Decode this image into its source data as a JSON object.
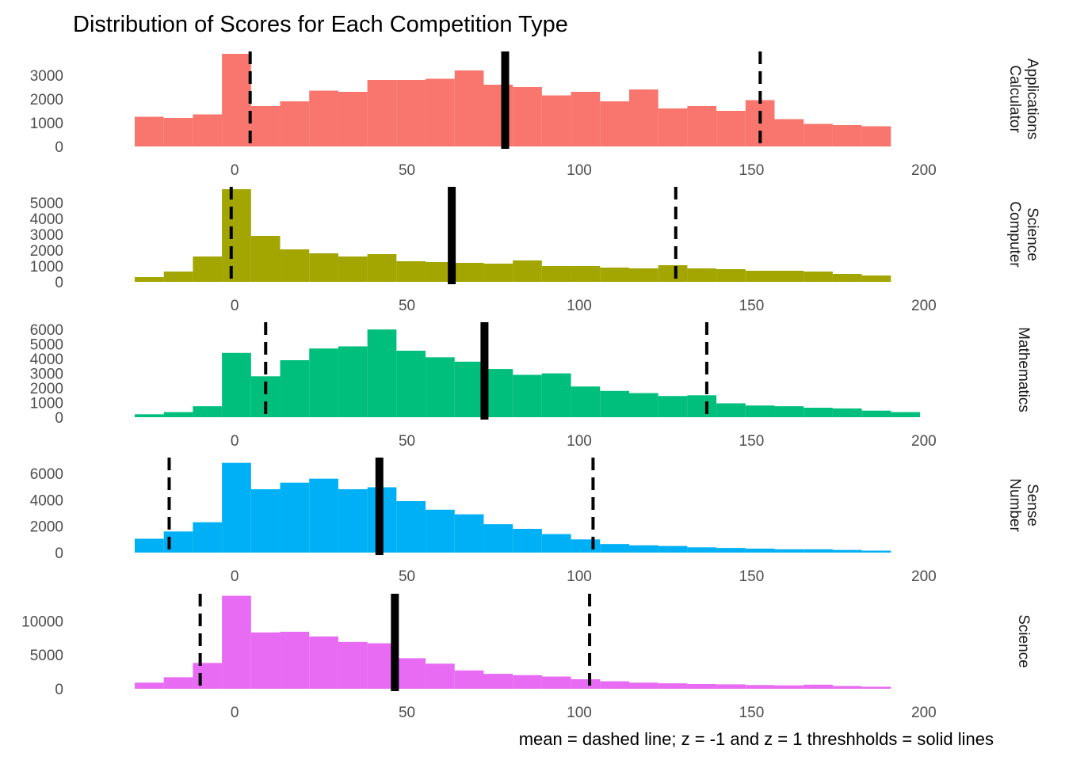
{
  "chart_data": {
    "type": "bar",
    "title": "Distribution of Scores for Each Competition Type",
    "caption": "mean = dashed line; z = -1 and z = 1 threshholds = solid lines",
    "xlim": [
      -29,
      206
    ],
    "x_ticks": [
      0,
      50,
      100,
      150,
      200
    ],
    "bin_width": 8.44,
    "bin_start": -29,
    "panels": [
      {
        "name": "Calculator Applications",
        "label_lines": [
          "Calculator",
          "Applications"
        ],
        "color": "#F8766D",
        "ylim": [
          0,
          4000
        ],
        "y_ticks": [
          0,
          1000,
          2000,
          3000
        ],
        "counts": [
          1250,
          1200,
          1350,
          3900,
          1700,
          1900,
          2350,
          2300,
          2800,
          2800,
          2850,
          3200,
          2600,
          2500,
          2150,
          2300,
          1900,
          2400,
          1600,
          1700,
          1500,
          1950,
          1150,
          950,
          900,
          850
        ],
        "mean": 78.5,
        "z_neg1": 4.5,
        "z_pos1": 152.5
      },
      {
        "name": "Computer Science",
        "label_lines": [
          "Computer",
          "Science"
        ],
        "color": "#A3A500",
        "ylim": [
          0,
          6000
        ],
        "y_ticks": [
          0,
          1000,
          2000,
          3000,
          4000,
          5000
        ],
        "counts": [
          300,
          650,
          1600,
          5850,
          2900,
          2050,
          1800,
          1600,
          1750,
          1300,
          1250,
          1200,
          1150,
          1350,
          1000,
          1000,
          900,
          850,
          1050,
          850,
          800,
          700,
          700,
          650,
          500,
          400
        ],
        "mean": 63,
        "z_neg1": -1,
        "z_pos1": 128
      },
      {
        "name": "Mathematics",
        "label_lines": [
          "Mathematics"
        ],
        "color": "#00BF7D",
        "ylim": [
          0,
          6500
        ],
        "y_ticks": [
          0,
          1000,
          2000,
          3000,
          4000,
          5000,
          6000
        ],
        "counts": [
          200,
          350,
          750,
          4400,
          2800,
          3900,
          4700,
          4850,
          6000,
          4550,
          4100,
          3800,
          3300,
          2900,
          3000,
          2100,
          1800,
          1650,
          1450,
          1500,
          950,
          800,
          750,
          650,
          600,
          450,
          350
        ],
        "mean": 72.5,
        "z_neg1": 9,
        "z_pos1": 137
      },
      {
        "name": "Number Sense",
        "label_lines": [
          "Number",
          "Sense"
        ],
        "color": "#00B0F6",
        "ylim": [
          0,
          7200
        ],
        "y_ticks": [
          0,
          2000,
          4000,
          6000
        ],
        "counts": [
          1050,
          1600,
          2300,
          6800,
          4800,
          5300,
          5600,
          4800,
          4950,
          3900,
          3250,
          2900,
          2150,
          1800,
          1400,
          1000,
          650,
          550,
          500,
          400,
          350,
          300,
          250,
          250,
          200,
          150
        ],
        "mean": 42,
        "z_neg1": -19,
        "z_pos1": 104
      },
      {
        "name": "Science",
        "label_lines": [
          "Science"
        ],
        "color": "#E76BF3",
        "ylim": [
          0,
          14000
        ],
        "y_ticks": [
          0,
          5000,
          10000
        ],
        "counts": [
          900,
          1700,
          3800,
          13700,
          8300,
          8400,
          7700,
          6900,
          6700,
          4500,
          3700,
          2700,
          2200,
          2000,
          1800,
          1400,
          1100,
          900,
          800,
          700,
          650,
          550,
          500,
          600,
          400,
          300
        ],
        "mean": 46.5,
        "z_neg1": -10,
        "z_pos1": 103
      }
    ]
  }
}
